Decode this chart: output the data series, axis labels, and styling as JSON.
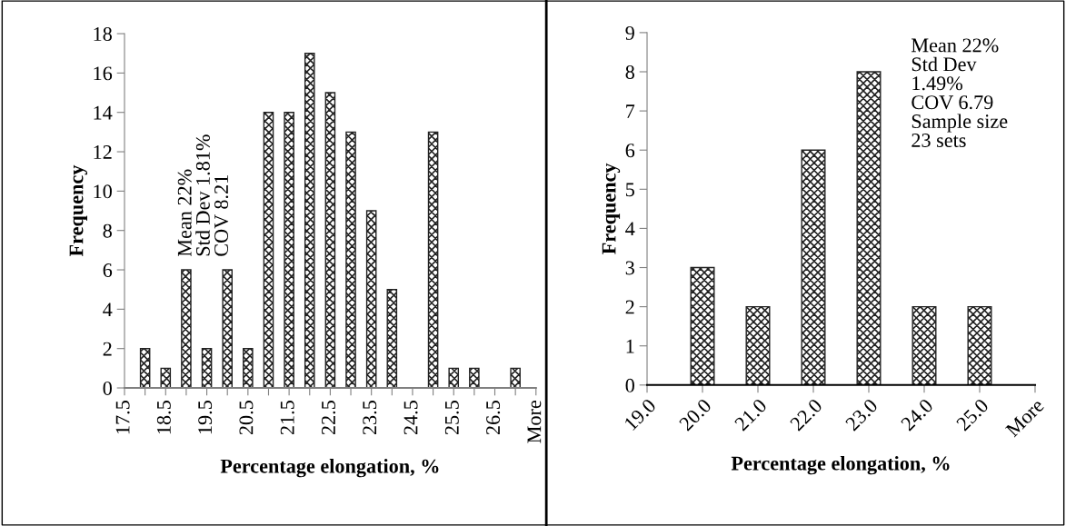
{
  "chart_data": [
    {
      "type": "bar",
      "xlabel": "Percentage elongation, %",
      "ylabel": "Frequency",
      "categories": [
        "17.5",
        null,
        "18.5",
        null,
        "19.5",
        null,
        "20.5",
        null,
        "21.5",
        null,
        "22.5",
        null,
        "23.5",
        null,
        "24.5",
        null,
        "25.5",
        null,
        "26.5",
        null,
        "More"
      ],
      "values": [
        0,
        2,
        1,
        6,
        2,
        6,
        2,
        14,
        14,
        17,
        15,
        13,
        9,
        5,
        0,
        13,
        1,
        1,
        0,
        1,
        0
      ],
      "color": "#222222",
      "ylim": [
        0,
        18
      ],
      "yticks": [
        0,
        2,
        4,
        6,
        8,
        10,
        12,
        14,
        16,
        18
      ],
      "grid": false,
      "legend": false,
      "annotations": [
        "Mean 22%",
        "Std Dev 1.81%",
        "COV 8.21"
      ]
    },
    {
      "type": "bar",
      "xlabel": "Percentage elongation, %",
      "ylabel": "Frequency",
      "categories": [
        "19.0",
        "20.0",
        "21.0",
        "22.0",
        "23.0",
        "24.0",
        "25.0",
        "More"
      ],
      "values": [
        0,
        3,
        2,
        6,
        8,
        2,
        2,
        0
      ],
      "color": "#222222",
      "ylim": [
        0,
        9
      ],
      "yticks": [
        0,
        1,
        2,
        3,
        4,
        5,
        6,
        7,
        8,
        9
      ],
      "grid": false,
      "legend": false,
      "annotations": [
        "Mean 22%",
        "Std Dev",
        "1.49%",
        "COV 6.79",
        "Sample size",
        "23 sets"
      ]
    }
  ]
}
